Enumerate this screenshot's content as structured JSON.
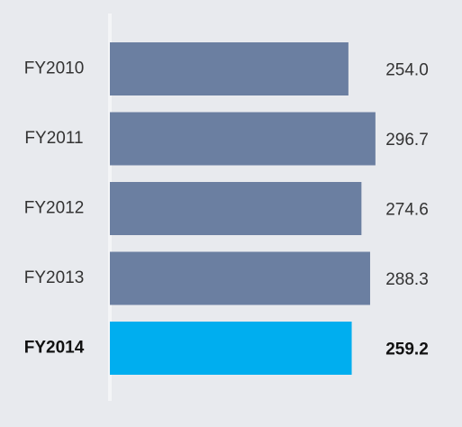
{
  "chart_data": {
    "type": "hbar",
    "categories": [
      "FY2010",
      "FY2011",
      "FY2012",
      "FY2013",
      "FY2014"
    ],
    "values": [
      254.0,
      296.7,
      274.6,
      288.3,
      259.2
    ],
    "value_labels": [
      "254.0",
      "296.7",
      "274.6",
      "288.3",
      "259.2"
    ],
    "colors": [
      "#6b7fa1",
      "#6b7fa1",
      "#6b7fa1",
      "#6b7fa1",
      "#00aeef"
    ],
    "xlim": [
      -123,
      300
    ]
  }
}
